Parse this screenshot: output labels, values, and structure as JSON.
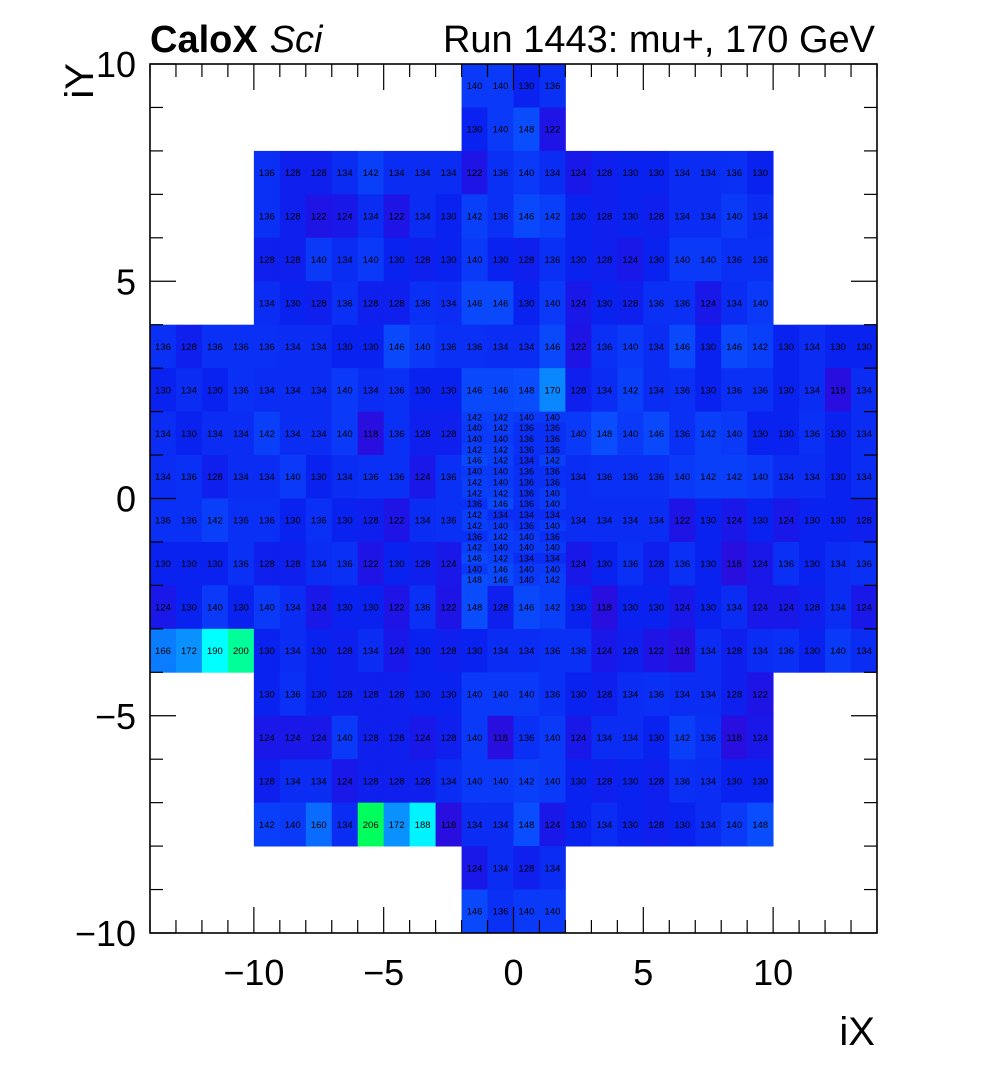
{
  "header": {
    "brand": "CaloX",
    "brand_suffix": "Sci",
    "run_info": "Run 1443: mu+, 170 GeV"
  },
  "chart_data": {
    "type": "heatmap",
    "xlabel": "iX",
    "ylabel": "iY",
    "xlim": [
      -14,
      14
    ],
    "ylim": [
      -10,
      10
    ],
    "xticks": [
      -10,
      -5,
      0,
      5,
      10
    ],
    "yticks": [
      -10,
      -5,
      0,
      5,
      10
    ],
    "xtick_labels": [
      "−10",
      "−5",
      "0",
      "5",
      "10"
    ],
    "ytick_labels": [
      "−10",
      "−5",
      "0",
      "5",
      "10"
    ],
    "color_scale": {
      "min": 110,
      "max": 210,
      "stops": [
        "#3d00d6",
        "#0a22f0",
        "#0a52ff",
        "#0a86ff",
        "#00ffff",
        "#00ff33"
      ]
    },
    "rows": [
      {
        "y0": 9,
        "y1": 10,
        "x_start": -2,
        "values": [
          140,
          140,
          130,
          136
        ]
      },
      {
        "y0": 8,
        "y1": 9,
        "x_start": -2,
        "values": [
          130,
          140,
          148,
          122
        ]
      },
      {
        "y0": 7,
        "y1": 8,
        "x_start": -10,
        "values": [
          136,
          128,
          128,
          134,
          142,
          134,
          134,
          134,
          122,
          136,
          140,
          134,
          124,
          128,
          130,
          130,
          134,
          134,
          136,
          130
        ]
      },
      {
        "y0": 6,
        "y1": 7,
        "x_start": -10,
        "values": [
          136,
          128,
          122,
          124,
          134,
          122,
          134,
          130,
          142,
          136,
          146,
          142,
          130,
          128,
          130,
          128,
          134,
          134,
          140,
          134
        ]
      },
      {
        "y0": 5,
        "y1": 6,
        "x_start": -10,
        "values": [
          128,
          128,
          140,
          134,
          140,
          130,
          128,
          130,
          140,
          130,
          128,
          136,
          130,
          128,
          124,
          130,
          140,
          140,
          136,
          136
        ]
      },
      {
        "y0": 4,
        "y1": 5,
        "x_start": -10,
        "values": [
          134,
          130,
          128,
          136,
          128,
          128,
          136,
          134,
          146,
          146,
          130,
          140,
          124,
          130,
          128,
          136,
          136,
          124,
          134,
          140
        ]
      },
      {
        "y0": 3,
        "y1": 4,
        "x_start": -14,
        "values": [
          136,
          128,
          136,
          136,
          136,
          134,
          134,
          130,
          130,
          146,
          140,
          136,
          136,
          134,
          134,
          146,
          122,
          136,
          140,
          134,
          146,
          130,
          146,
          142,
          130,
          134,
          130,
          130
        ]
      },
      {
        "y0": 2,
        "y1": 3,
        "x_start": -14,
        "values": [
          130,
          134,
          130,
          136,
          134,
          134,
          134,
          140,
          134,
          136,
          130,
          130,
          146,
          146,
          148,
          170,
          128,
          134,
          142,
          134,
          136,
          130,
          136,
          136,
          130,
          134,
          118,
          134
        ]
      },
      {
        "y0": 1,
        "y1": 2,
        "x_start": -14,
        "values": [
          134,
          130,
          134,
          134,
          142,
          134,
          134,
          140,
          118,
          136,
          128,
          128,
          null,
          null,
          null,
          null,
          140,
          148,
          140,
          146,
          136,
          142,
          140,
          130,
          130,
          136,
          130,
          134
        ]
      },
      {
        "y0": 0,
        "y1": 1,
        "x_start": -14,
        "values": [
          134,
          136,
          128,
          134,
          134,
          140,
          130,
          134,
          136,
          136,
          124,
          136,
          null,
          null,
          null,
          null,
          134,
          136,
          136,
          136,
          140,
          142,
          142,
          140,
          134,
          134,
          130,
          134
        ]
      },
      {
        "y0": -1,
        "y1": 0,
        "x_start": -14,
        "values": [
          136,
          136,
          142,
          136,
          136,
          130,
          136,
          130,
          128,
          122,
          134,
          136,
          null,
          null,
          null,
          null,
          134,
          134,
          134,
          134,
          122,
          130,
          124,
          130,
          124,
          130,
          130,
          128
        ]
      },
      {
        "y0": -2,
        "y1": -1,
        "x_start": -14,
        "values": [
          130,
          130,
          130,
          136,
          128,
          128,
          134,
          136,
          122,
          130,
          128,
          124,
          null,
          null,
          null,
          null,
          124,
          130,
          136,
          128,
          136,
          130,
          118,
          124,
          136,
          130,
          134,
          136
        ]
      },
      {
        "y0": -3,
        "y1": -2,
        "x_start": -14,
        "values": [
          124,
          130,
          140,
          130,
          140,
          134,
          124,
          130,
          130,
          122,
          136,
          122,
          148,
          128,
          146,
          142,
          130,
          118,
          130,
          130,
          124,
          130,
          134,
          124,
          124,
          128,
          134,
          124
        ]
      },
      {
        "y0": -4,
        "y1": -3,
        "x_start": -14,
        "values": [
          166,
          172,
          190,
          200,
          130,
          134,
          130,
          128,
          134,
          124,
          130,
          128,
          130,
          134,
          134,
          136,
          136,
          124,
          128,
          122,
          118,
          134,
          128,
          134,
          136,
          130,
          140,
          134
        ]
      },
      {
        "y0": -5,
        "y1": -4,
        "x_start": -10,
        "values": [
          130,
          136,
          130,
          128,
          128,
          128,
          130,
          130,
          140,
          140,
          140,
          136,
          130,
          128,
          134,
          136,
          134,
          134,
          128,
          122
        ]
      },
      {
        "y0": -6,
        "y1": -5,
        "x_start": -10,
        "values": [
          124,
          124,
          124,
          140,
          128,
          128,
          124,
          128,
          140,
          118,
          136,
          140,
          124,
          134,
          134,
          130,
          142,
          136,
          118,
          124
        ]
      },
      {
        "y0": -7,
        "y1": -6,
        "x_start": -10,
        "values": [
          128,
          134,
          134,
          124,
          128,
          128,
          128,
          134,
          140,
          140,
          142,
          140,
          130,
          128,
          130,
          128,
          136,
          134,
          130,
          130
        ]
      },
      {
        "y0": -8,
        "y1": -7,
        "x_start": -10,
        "values": [
          142,
          140,
          160,
          134,
          206,
          172,
          188,
          118,
          134,
          134,
          148,
          124,
          130,
          134,
          130,
          128,
          130,
          134,
          140,
          148
        ]
      },
      {
        "y0": -9,
        "y1": -8,
        "x_start": -2,
        "values": [
          124,
          134,
          128,
          134
        ]
      },
      {
        "y0": -10,
        "y1": -9,
        "x_start": -2,
        "values": [
          146,
          136,
          140,
          140
        ]
      }
    ],
    "fine_region": {
      "x_start": -2,
      "x_end": 2,
      "y_top": 2,
      "y_bottom": -2,
      "rows": [
        [
          142,
          142,
          140,
          140
        ],
        [
          140,
          142,
          136,
          136
        ],
        [
          140,
          140,
          136,
          136
        ],
        [
          142,
          142,
          136,
          136
        ],
        [
          146,
          142,
          134,
          142
        ],
        [
          140,
          140,
          136,
          136
        ],
        [
          142,
          140,
          136,
          136
        ],
        [
          142,
          142,
          136,
          140
        ],
        [
          136,
          146,
          136,
          140
        ],
        [
          142,
          134,
          134,
          134
        ],
        [
          142,
          140,
          136,
          140
        ],
        [
          136,
          142,
          140,
          136
        ],
        [
          142,
          140,
          140,
          140
        ],
        [
          146,
          142,
          134,
          134
        ],
        [
          140,
          146,
          140,
          140
        ],
        [
          148,
          146,
          140,
          142
        ]
      ]
    }
  }
}
